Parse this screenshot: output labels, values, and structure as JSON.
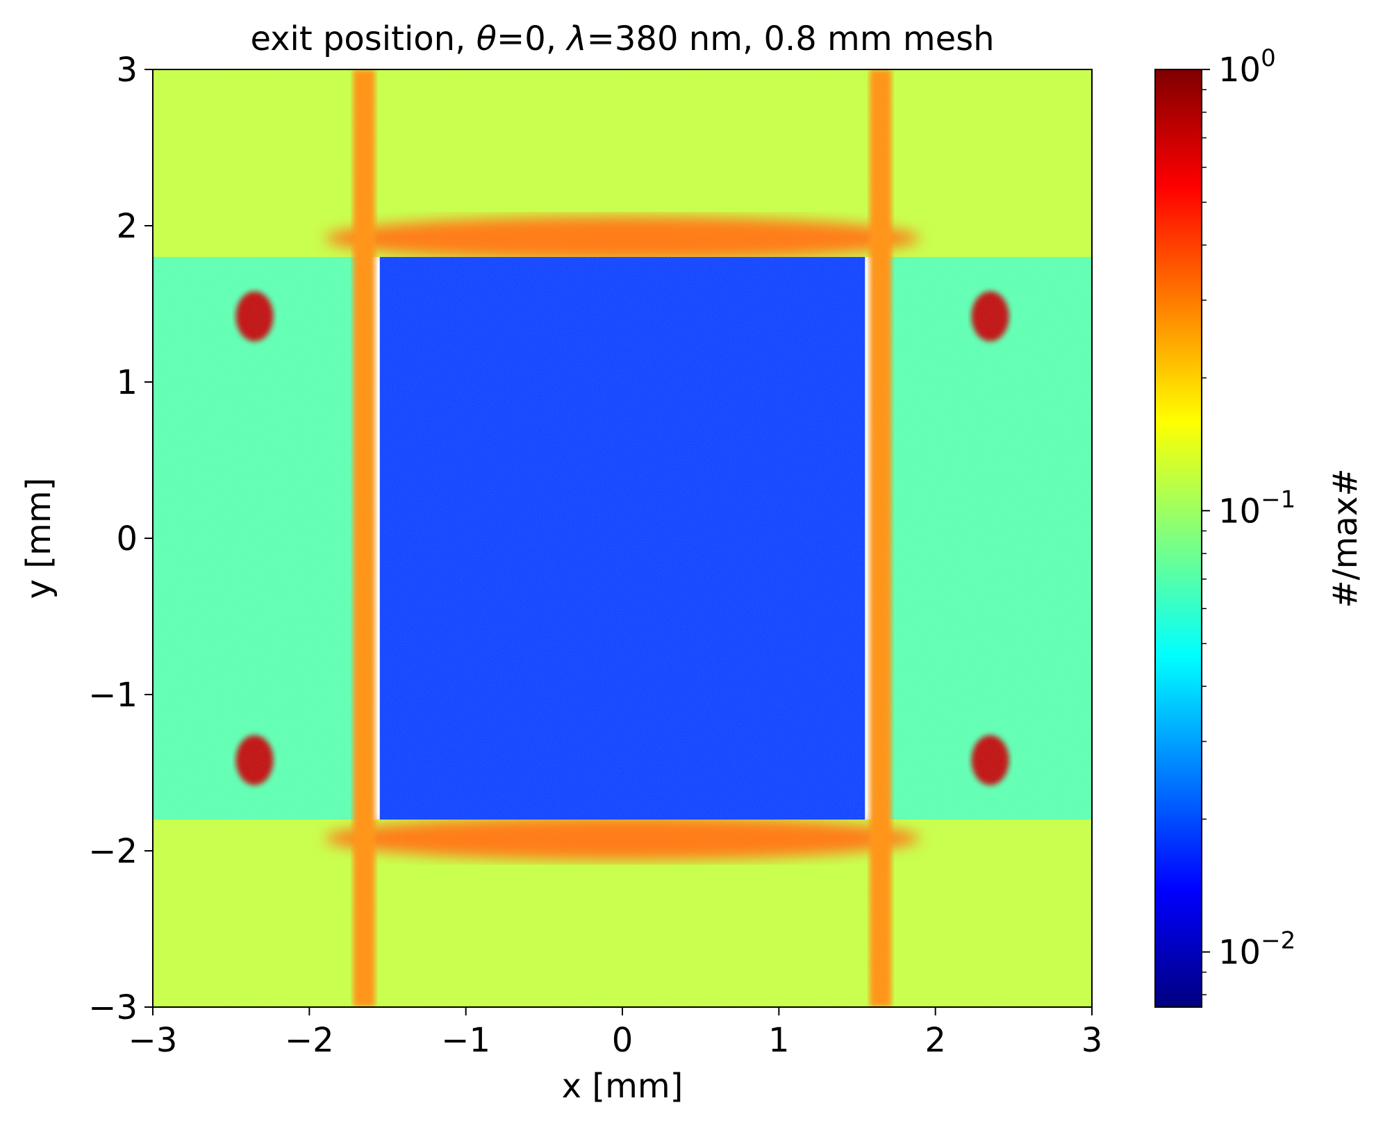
{
  "chart_data": {
    "type": "heatmap",
    "title": {
      "prefix": "exit position, ",
      "theta_symbol": "θ",
      "theta_value": "=0, ",
      "lambda_symbol": "λ",
      "suffix": "=380 nm, 0.8 mm mesh"
    },
    "xlabel": "x [mm]",
    "ylabel": "y [mm]",
    "xlim": [
      -3,
      3
    ],
    "ylim": [
      -3,
      3
    ],
    "x_ticks": [
      {
        "value": -3,
        "label": "−3"
      },
      {
        "value": -2,
        "label": "−2"
      },
      {
        "value": -1,
        "label": "−1"
      },
      {
        "value": 0,
        "label": "0"
      },
      {
        "value": 1,
        "label": "1"
      },
      {
        "value": 2,
        "label": "2"
      },
      {
        "value": 3,
        "label": "3"
      }
    ],
    "y_ticks": [
      {
        "value": -3,
        "label": "−3"
      },
      {
        "value": -2,
        "label": "−2"
      },
      {
        "value": -1,
        "label": "−1"
      },
      {
        "value": 0,
        "label": "0"
      },
      {
        "value": 1,
        "label": "1"
      },
      {
        "value": 2,
        "label": "2"
      },
      {
        "value": 3,
        "label": "3"
      }
    ],
    "colormap": "jet",
    "colormap_stops": [
      "#00007f",
      "#0000ff",
      "#007fff",
      "#00ffff",
      "#7fff7f",
      "#ffff00",
      "#ff7f00",
      "#ff0000",
      "#7f0000"
    ],
    "colorbar": {
      "label": "#/max#",
      "scale": "log",
      "range": [
        0.0075,
        1.0
      ],
      "major_ticks": [
        {
          "value": 0.01,
          "base": "10",
          "exponent": "−2"
        },
        {
          "value": 0.1,
          "base": "10",
          "exponent": "−1"
        },
        {
          "value": 1.0,
          "base": "10",
          "exponent": "0"
        }
      ]
    },
    "grid": false,
    "regions": {
      "central_square": {
        "x": [
          -1.55,
          1.55
        ],
        "y": [
          -1.8,
          1.8
        ],
        "level": 0.018
      },
      "outer_bands": {
        "x": [
          [
            -3,
            -1.6
          ],
          [
            1.6,
            3
          ]
        ],
        "y": [
          -1.8,
          1.8
        ],
        "level": 0.07
      },
      "top_bottom_bands": {
        "y": [
          [
            1.8,
            3
          ],
          [
            -3,
            -1.8
          ]
        ],
        "level": 0.12
      },
      "vertical_stripes": {
        "x": [
          -1.65,
          1.65
        ],
        "level": 0.28
      },
      "arc_peaks": {
        "x": 0,
        "y": [
          1.92,
          -1.92
        ],
        "level": 0.32
      },
      "hot_spots": {
        "x": [
          -2.35,
          2.35
        ],
        "y": [
          1.42,
          -1.42
        ],
        "level": 0.75
      }
    }
  }
}
